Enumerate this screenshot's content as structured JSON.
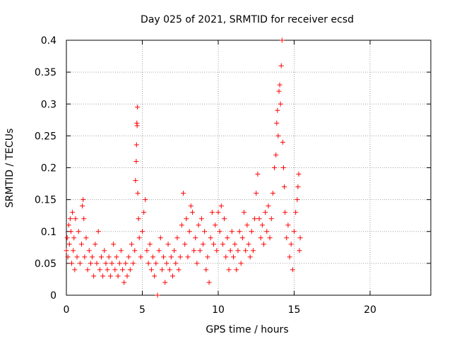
{
  "chart_data": {
    "type": "scatter",
    "title": "Day 025 of 2021, SRMTID for receiver ecsd",
    "xlabel": "GPS time / hours",
    "ylabel": "SRMTID / TECUs",
    "xlim": [
      0,
      24
    ],
    "ylim": [
      0,
      0.4
    ],
    "xticks": [
      0,
      5,
      10,
      15,
      20
    ],
    "xtick_labels": [
      "0",
      "5",
      "10",
      "15",
      "20"
    ],
    "yticks": [
      0,
      0.05,
      0.1,
      0.15,
      0.2,
      0.25,
      0.3,
      0.35,
      0.4
    ],
    "ytick_labels": [
      "0",
      "0.05",
      "0.1",
      "0.15",
      "0.2",
      "0.25",
      "0.3",
      "0.35",
      "0.4"
    ],
    "grid": true,
    "marker": "+",
    "series": [
      {
        "name": "SRMTID",
        "color": "#ff0000",
        "points": [
          [
            0.0,
            0.07
          ],
          [
            0.05,
            0.09
          ],
          [
            0.1,
            0.06
          ],
          [
            0.15,
            0.11
          ],
          [
            0.2,
            0.08
          ],
          [
            0.25,
            0.12
          ],
          [
            0.3,
            0.1
          ],
          [
            0.35,
            0.05
          ],
          [
            0.4,
            0.13
          ],
          [
            0.45,
            0.07
          ],
          [
            0.5,
            0.09
          ],
          [
            0.55,
            0.04
          ],
          [
            0.6,
            0.12
          ],
          [
            0.7,
            0.06
          ],
          [
            0.8,
            0.1
          ],
          [
            0.9,
            0.05
          ],
          [
            1.0,
            0.08
          ],
          [
            1.05,
            0.14
          ],
          [
            1.1,
            0.15
          ],
          [
            1.15,
            0.12
          ],
          [
            1.2,
            0.06
          ],
          [
            1.3,
            0.09
          ],
          [
            1.4,
            0.04
          ],
          [
            1.5,
            0.07
          ],
          [
            1.6,
            0.05
          ],
          [
            1.7,
            0.06
          ],
          [
            1.8,
            0.03
          ],
          [
            1.9,
            0.08
          ],
          [
            2.0,
            0.05
          ],
          [
            2.1,
            0.1
          ],
          [
            2.2,
            0.04
          ],
          [
            2.3,
            0.06
          ],
          [
            2.4,
            0.03
          ],
          [
            2.5,
            0.07
          ],
          [
            2.6,
            0.05
          ],
          [
            2.7,
            0.04
          ],
          [
            2.8,
            0.06
          ],
          [
            2.9,
            0.03
          ],
          [
            3.0,
            0.05
          ],
          [
            3.1,
            0.08
          ],
          [
            3.2,
            0.04
          ],
          [
            3.3,
            0.06
          ],
          [
            3.4,
            0.03
          ],
          [
            3.5,
            0.05
          ],
          [
            3.6,
            0.07
          ],
          [
            3.7,
            0.04
          ],
          [
            3.8,
            0.02
          ],
          [
            3.9,
            0.05
          ],
          [
            4.0,
            0.03
          ],
          [
            4.1,
            0.06
          ],
          [
            4.2,
            0.04
          ],
          [
            4.3,
            0.08
          ],
          [
            4.4,
            0.05
          ],
          [
            4.5,
            0.07
          ],
          [
            4.55,
            0.18
          ],
          [
            4.6,
            0.21
          ],
          [
            4.62,
            0.236
          ],
          [
            4.64,
            0.27
          ],
          [
            4.66,
            0.266
          ],
          [
            4.68,
            0.295
          ],
          [
            4.7,
            0.16
          ],
          [
            4.75,
            0.12
          ],
          [
            4.8,
            0.09
          ],
          [
            4.9,
            0.06
          ],
          [
            5.0,
            0.1
          ],
          [
            5.1,
            0.13
          ],
          [
            5.2,
            0.15
          ],
          [
            5.3,
            0.07
          ],
          [
            5.4,
            0.05
          ],
          [
            5.5,
            0.08
          ],
          [
            5.6,
            0.04
          ],
          [
            5.7,
            0.06
          ],
          [
            5.8,
            0.03
          ],
          [
            5.9,
            0.05
          ],
          [
            6.0,
            0.0
          ],
          [
            6.1,
            0.07
          ],
          [
            6.2,
            0.09
          ],
          [
            6.3,
            0.04
          ],
          [
            6.4,
            0.06
          ],
          [
            6.5,
            0.02
          ],
          [
            6.6,
            0.05
          ],
          [
            6.7,
            0.08
          ],
          [
            6.8,
            0.04
          ],
          [
            6.9,
            0.06
          ],
          [
            7.0,
            0.03
          ],
          [
            7.1,
            0.07
          ],
          [
            7.2,
            0.05
          ],
          [
            7.3,
            0.09
          ],
          [
            7.4,
            0.04
          ],
          [
            7.5,
            0.06
          ],
          [
            7.6,
            0.11
          ],
          [
            7.7,
            0.16
          ],
          [
            7.8,
            0.08
          ],
          [
            7.9,
            0.12
          ],
          [
            8.0,
            0.06
          ],
          [
            8.1,
            0.1
          ],
          [
            8.2,
            0.14
          ],
          [
            8.3,
            0.13
          ],
          [
            8.4,
            0.07
          ],
          [
            8.5,
            0.09
          ],
          [
            8.6,
            0.05
          ],
          [
            8.7,
            0.11
          ],
          [
            8.8,
            0.07
          ],
          [
            8.9,
            0.12
          ],
          [
            9.0,
            0.08
          ],
          [
            9.1,
            0.1
          ],
          [
            9.2,
            0.04
          ],
          [
            9.3,
            0.06
          ],
          [
            9.4,
            0.02
          ],
          [
            9.5,
            0.09
          ],
          [
            9.6,
            0.13
          ],
          [
            9.7,
            0.08
          ],
          [
            9.8,
            0.11
          ],
          [
            9.9,
            0.07
          ],
          [
            10.0,
            0.13
          ],
          [
            10.1,
            0.1
          ],
          [
            10.2,
            0.14
          ],
          [
            10.3,
            0.08
          ],
          [
            10.4,
            0.12
          ],
          [
            10.5,
            0.06
          ],
          [
            10.6,
            0.09
          ],
          [
            10.7,
            0.04
          ],
          [
            10.8,
            0.07
          ],
          [
            10.9,
            0.1
          ],
          [
            11.0,
            0.06
          ],
          [
            11.1,
            0.08
          ],
          [
            11.2,
            0.04
          ],
          [
            11.3,
            0.07
          ],
          [
            11.4,
            0.1
          ],
          [
            11.5,
            0.05
          ],
          [
            11.6,
            0.09
          ],
          [
            11.7,
            0.13
          ],
          [
            11.8,
            0.07
          ],
          [
            11.9,
            0.11
          ],
          [
            12.0,
            0.08
          ],
          [
            12.1,
            0.06
          ],
          [
            12.2,
            0.1
          ],
          [
            12.3,
            0.07
          ],
          [
            12.4,
            0.12
          ],
          [
            12.5,
            0.16
          ],
          [
            12.6,
            0.19
          ],
          [
            12.7,
            0.12
          ],
          [
            12.8,
            0.09
          ],
          [
            12.9,
            0.11
          ],
          [
            13.0,
            0.08
          ],
          [
            13.1,
            0.13
          ],
          [
            13.2,
            0.1
          ],
          [
            13.3,
            0.14
          ],
          [
            13.4,
            0.09
          ],
          [
            13.5,
            0.12
          ],
          [
            13.6,
            0.16
          ],
          [
            13.7,
            0.2
          ],
          [
            13.8,
            0.22
          ],
          [
            13.85,
            0.27
          ],
          [
            13.9,
            0.29
          ],
          [
            13.95,
            0.25
          ],
          [
            14.0,
            0.32
          ],
          [
            14.05,
            0.33
          ],
          [
            14.1,
            0.3
          ],
          [
            14.15,
            0.36
          ],
          [
            14.2,
            0.4
          ],
          [
            14.25,
            0.24
          ],
          [
            14.3,
            0.2
          ],
          [
            14.35,
            0.17
          ],
          [
            14.4,
            0.13
          ],
          [
            14.5,
            0.09
          ],
          [
            14.6,
            0.11
          ],
          [
            14.7,
            0.06
          ],
          [
            14.8,
            0.08
          ],
          [
            14.9,
            0.04
          ],
          [
            15.0,
            0.1
          ],
          [
            15.1,
            0.13
          ],
          [
            15.2,
            0.15
          ],
          [
            15.25,
            0.17
          ],
          [
            15.3,
            0.19
          ],
          [
            15.35,
            0.07
          ],
          [
            15.4,
            0.09
          ]
        ]
      }
    ]
  }
}
